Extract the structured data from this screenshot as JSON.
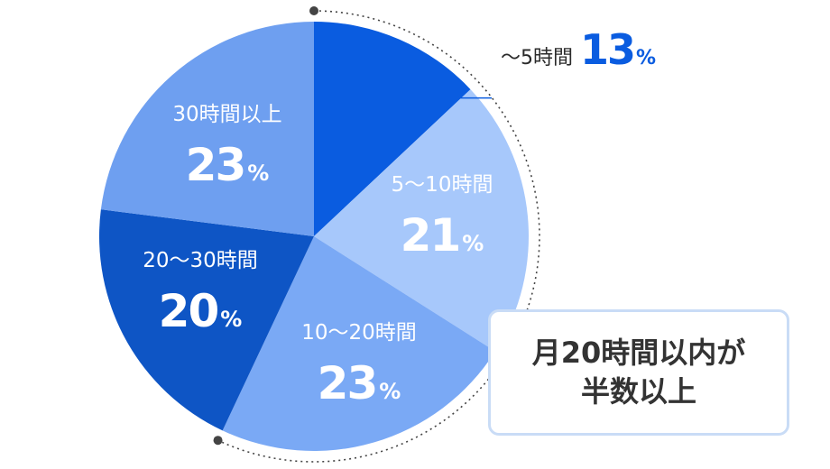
{
  "chart_data": {
    "type": "pie",
    "slices": [
      {
        "category": "～5時間",
        "value": 13,
        "display": "13",
        "unit": "%",
        "color": "#0a5ce0",
        "label_color": "#2a2a2a",
        "label_outside": true
      },
      {
        "category": "5～10時間",
        "value": 21,
        "display": "21",
        "unit": "%",
        "color": "#a7c8fb",
        "label_color": "#ffffff"
      },
      {
        "category": "10～20時間",
        "value": 23,
        "display": "23",
        "unit": "%",
        "color": "#7aa9f5",
        "label_color": "#ffffff"
      },
      {
        "category": "20～30時間",
        "value": 20,
        "display": "20",
        "unit": "%",
        "color": "#0e55c5",
        "label_color": "#ffffff"
      },
      {
        "category": "30時間以上",
        "value": 23,
        "display": "23",
        "unit": "%",
        "color": "#6e9ff0",
        "label_color": "#ffffff"
      }
    ],
    "start": "12 o'clock",
    "direction": "clockwise",
    "legend": "none"
  },
  "annotation": {
    "line1": "月20時間以内が",
    "line2": "半数以上"
  }
}
